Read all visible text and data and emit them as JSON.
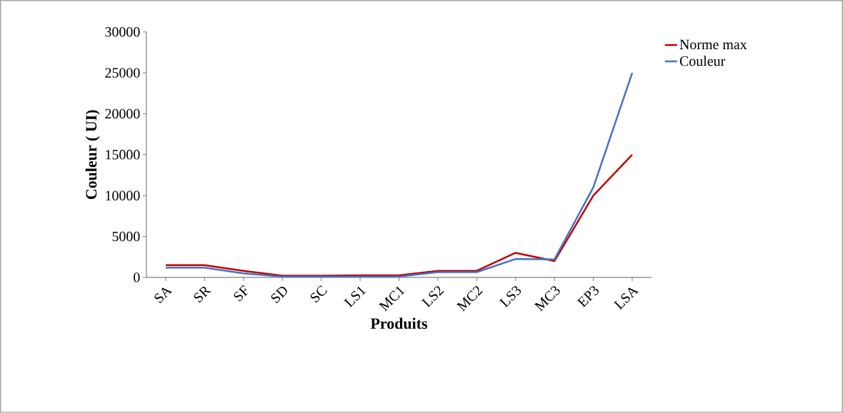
{
  "chart_data": {
    "type": "line",
    "xlabel": "Produits",
    "ylabel": "Couleur ( UI)",
    "categories": [
      "SA",
      "SR",
      "SF",
      "SD",
      "SC",
      "LS1",
      "MC1",
      "LS2",
      "MC2",
      "LS3",
      "MC3",
      "EP3",
      "LSA"
    ],
    "series": [
      {
        "name": "Norme max",
        "color": "#c00000",
        "values": [
          1500,
          1500,
          800,
          200,
          200,
          250,
          250,
          800,
          800,
          3000,
          2000,
          10000,
          15000
        ]
      },
      {
        "name": "Couleur",
        "color": "#4472c4",
        "values": [
          1200,
          1200,
          500,
          100,
          100,
          100,
          100,
          650,
          650,
          2250,
          2200,
          11000,
          25000
        ]
      }
    ],
    "ylim": [
      0,
      30000
    ],
    "yticks": [
      0,
      5000,
      10000,
      15000,
      20000,
      25000,
      30000
    ],
    "grid": false,
    "legend": "right",
    "marker": "none",
    "line_style": "solid"
  }
}
